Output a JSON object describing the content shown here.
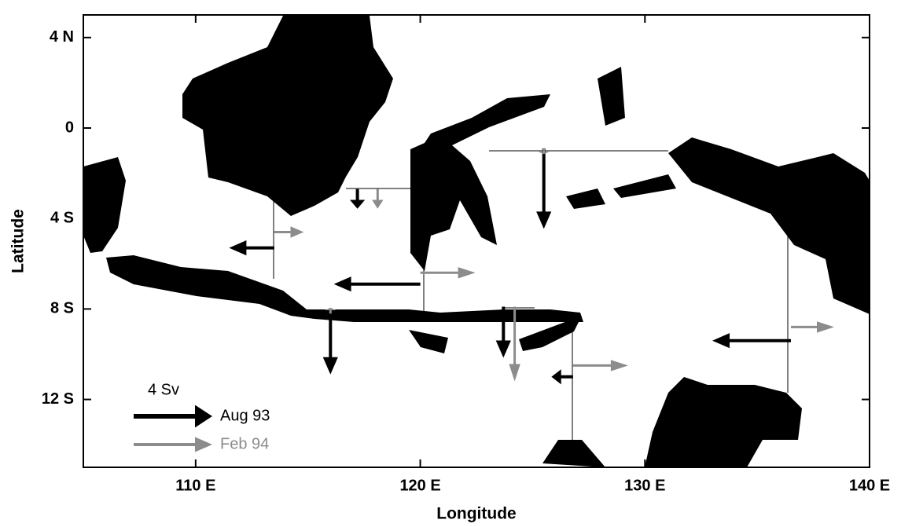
{
  "chart_data": {
    "type": "quiver",
    "x_label": "Longitude",
    "y_label": "Latitude",
    "xlim": [
      105,
      140
    ],
    "ylim": [
      -15,
      5
    ],
    "xticks": [
      {
        "value": 110,
        "label": "110 E"
      },
      {
        "value": 120,
        "label": "120 E"
      },
      {
        "value": 130,
        "label": "130 E"
      },
      {
        "value": 140,
        "label": "140 E"
      }
    ],
    "yticks": [
      {
        "value": 4,
        "label": "4 N"
      },
      0,
      {
        "value": -4,
        "label": "4 S"
      },
      {
        "value": -8,
        "label": "8 S"
      },
      {
        "value": -12,
        "label": "12 S"
      }
    ],
    "legend": {
      "scale_label": "4 Sv",
      "scale": 4
    },
    "series": [
      {
        "name": "Aug 93",
        "color": "#000000",
        "vectors": [
          {
            "lon": 113.5,
            "lat": -5.3,
            "u": -2.3,
            "v": 0
          },
          {
            "lon": 120,
            "lat": -6.9,
            "u": -4.4,
            "v": 0
          },
          {
            "lon": 117.2,
            "lat": -2.7,
            "u": 0,
            "v": -1.0
          },
          {
            "lon": 116,
            "lat": -8.2,
            "u": 0,
            "v": -3.1
          },
          {
            "lon": 125.5,
            "lat": -0.9,
            "u": 0,
            "v": -4.1
          },
          {
            "lon": 123.7,
            "lat": -7.9,
            "u": 0,
            "v": -2.6
          },
          {
            "lon": 126.8,
            "lat": -11.0,
            "u": -1.1,
            "v": 0
          },
          {
            "lon": 136.5,
            "lat": -9.4,
            "u": -4.0,
            "v": 0
          }
        ]
      },
      {
        "name": "Feb 94",
        "color": "#8c8c8c",
        "vectors": [
          {
            "lon": 113.5,
            "lat": -4.6,
            "u": 1.5,
            "v": 0
          },
          {
            "lon": 118.1,
            "lat": -2.7,
            "u": 0,
            "v": -1.0
          },
          {
            "lon": 120,
            "lat": -6.4,
            "u": 2.8,
            "v": 0
          },
          {
            "lon": 116,
            "lat": -8.2,
            "u": 0,
            "v": 0.3
          },
          {
            "lon": 125.5,
            "lat": -0.9,
            "u": 0,
            "v": -0.3
          },
          {
            "lon": 124.2,
            "lat": -7.9,
            "u": 0,
            "v": -3.8
          },
          {
            "lon": 126.8,
            "lat": -10.5,
            "u": 2.8,
            "v": 0
          },
          {
            "lon": 136.5,
            "lat": -8.8,
            "u": 2.2,
            "v": 0
          }
        ]
      }
    ]
  }
}
